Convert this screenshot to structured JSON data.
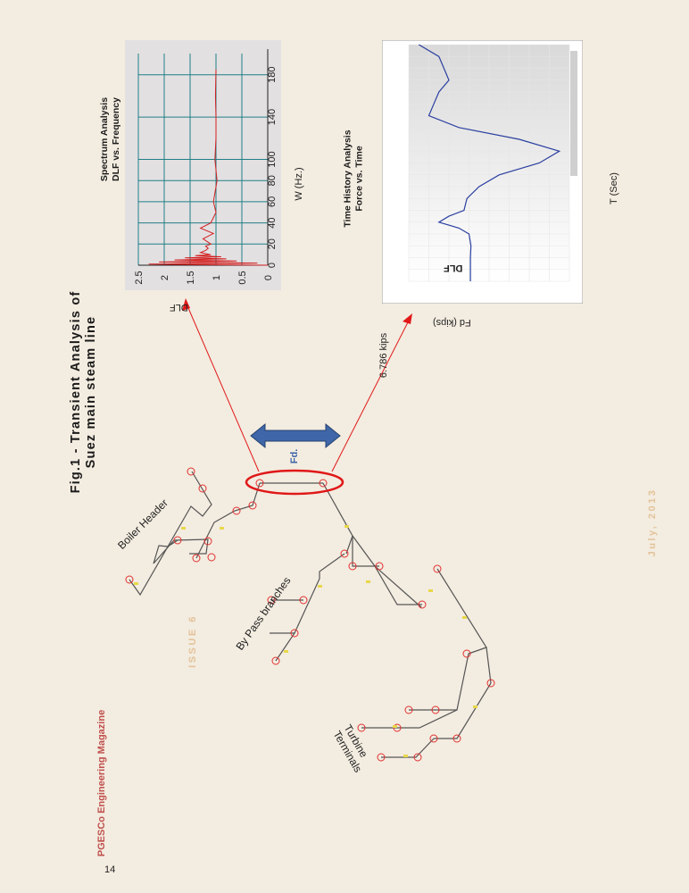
{
  "figure": {
    "title_line1": "Fig.1 - Transient Analysis of",
    "title_line2": "Suez main steam line"
  },
  "footer": {
    "magazine": "PGESCo Engineering Magazine",
    "issue": "ISSUE 6",
    "date": "July, 2013",
    "page_number": "14"
  },
  "isometric": {
    "labels": {
      "boiler_header": "Boiler Header",
      "bypass": "By Pass branches",
      "turbine_line1": "Turbine",
      "turbine_line2": "Terminals",
      "force": "Fd."
    }
  },
  "annotations": {
    "dlf_arrow": "DLF",
    "fd_arrow": "Fd (kips)",
    "force_value": "6.786 kips"
  },
  "chart_data": [
    {
      "type": "line",
      "title": "Spectrum Analysis",
      "subtitle": "DLF vs. Frequency",
      "xlabel": "W (Hz.)",
      "ylabel": "DLF",
      "xlim": [
        0,
        200
      ],
      "ylim": [
        0,
        2.5
      ],
      "x_ticks": [
        "0",
        "20",
        "40",
        "60",
        "80",
        "100",
        "140",
        "180"
      ],
      "y_ticks": [
        "0",
        "0.5",
        "1",
        "1.5",
        "2",
        "2.5"
      ],
      "grid": true,
      "series_color": "#d32020",
      "grid_color": "#1f7f85",
      "x": [
        0,
        1,
        2,
        3,
        4,
        5,
        6,
        7,
        8,
        9,
        10,
        12,
        14,
        16,
        18,
        20,
        25,
        30,
        35,
        40,
        50,
        60,
        80,
        100,
        120,
        140,
        160,
        185
      ],
      "y": [
        0,
        2.3,
        0.2,
        2.1,
        0.6,
        1.8,
        0.8,
        1.6,
        0.9,
        1.4,
        1.1,
        1.3,
        1.2,
        1.15,
        1.2,
        1.1,
        1.25,
        1.05,
        1.3,
        1.1,
        1.0,
        1.05,
        0.98,
        1.02,
        1.0,
        1.0,
        1.01,
        1.0
      ]
    },
    {
      "type": "line",
      "title": "Time History Analysis",
      "subtitle": "Force vs. Time",
      "xlabel": "T (Sec)",
      "ylabel": "DLF",
      "series_color": "#2a3fa0",
      "x": [
        0.0,
        0.2,
        0.3,
        0.4,
        0.45,
        0.5,
        0.55,
        0.6,
        0.7,
        0.8,
        0.9,
        1.0,
        1.1,
        1.2,
        1.3,
        1.4,
        1.5,
        1.6,
        1.7,
        1.8,
        1.9,
        2.0
      ],
      "y": [
        6.786,
        6.786,
        6.78,
        6.8,
        6.9,
        7.1,
        7.0,
        6.85,
        6.82,
        6.7,
        6.5,
        6.1,
        5.9,
        6.3,
        6.9,
        7.2,
        7.15,
        7.1,
        7.0,
        7.05,
        7.1,
        7.3
      ]
    }
  ]
}
